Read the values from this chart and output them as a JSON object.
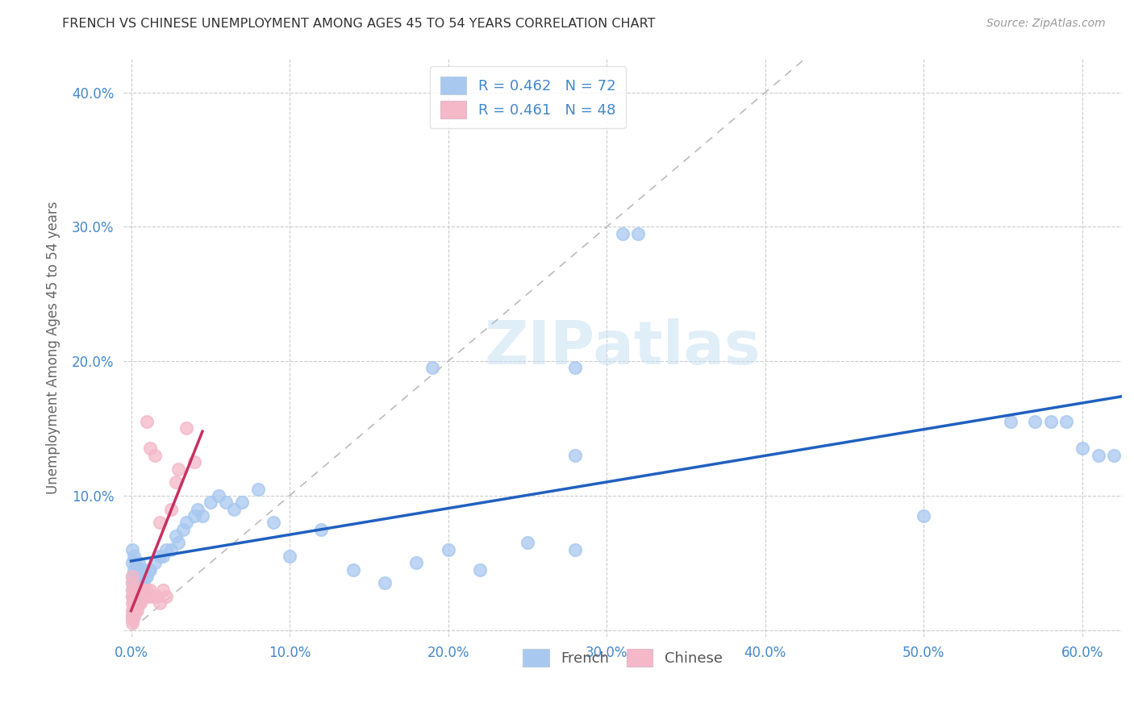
{
  "title": "FRENCH VS CHINESE UNEMPLOYMENT AMONG AGES 45 TO 54 YEARS CORRELATION CHART",
  "source": "Source: ZipAtlas.com",
  "ylabel": "Unemployment Among Ages 45 to 54 years",
  "xlim": [
    -0.005,
    0.625
  ],
  "ylim": [
    -0.005,
    0.425
  ],
  "xticks": [
    0.0,
    0.1,
    0.2,
    0.3,
    0.4,
    0.5,
    0.6
  ],
  "yticks": [
    0.0,
    0.1,
    0.2,
    0.3,
    0.4
  ],
  "xticklabels": [
    "0.0%",
    "10.0%",
    "20.0%",
    "30.0%",
    "40.0%",
    "50.0%",
    "60.0%"
  ],
  "yticklabels": [
    "",
    "10.0%",
    "20.0%",
    "30.0%",
    "40.0%"
  ],
  "french_color": "#a8c8f0",
  "chinese_color": "#f4b8c8",
  "french_line_color": "#2060c0",
  "chinese_line_color": "#c83060",
  "tick_color": "#4488cc",
  "axis_label_color": "#666666",
  "title_color": "#333333",
  "grid_color": "#cccccc",
  "background_color": "#ffffff",
  "legend_color": "#4488cc",
  "french_x": [
    0.001,
    0.001,
    0.001,
    0.001,
    0.001,
    0.001,
    0.002,
    0.002,
    0.002,
    0.002,
    0.002,
    0.003,
    0.003,
    0.003,
    0.003,
    0.004,
    0.004,
    0.004,
    0.005,
    0.005,
    0.005,
    0.006,
    0.006,
    0.007,
    0.007,
    0.008,
    0.008,
    0.009,
    0.01,
    0.011,
    0.012,
    0.015,
    0.018,
    0.02,
    0.022,
    0.025,
    0.028,
    0.03,
    0.033,
    0.035,
    0.04,
    0.042,
    0.045,
    0.05,
    0.055,
    0.06,
    0.065,
    0.07,
    0.08,
    0.09,
    0.1,
    0.12,
    0.14,
    0.16,
    0.18,
    0.2,
    0.22,
    0.25,
    0.28,
    0.31,
    0.32,
    0.5,
    0.555,
    0.57,
    0.58,
    0.59,
    0.6,
    0.61,
    0.62,
    0.28,
    0.19,
    0.28
  ],
  "french_y": [
    0.03,
    0.04,
    0.05,
    0.06,
    0.035,
    0.025,
    0.035,
    0.045,
    0.055,
    0.025,
    0.03,
    0.04,
    0.05,
    0.03,
    0.02,
    0.035,
    0.045,
    0.025,
    0.04,
    0.05,
    0.03,
    0.04,
    0.035,
    0.045,
    0.03,
    0.035,
    0.045,
    0.04,
    0.04,
    0.045,
    0.045,
    0.05,
    0.055,
    0.055,
    0.06,
    0.06,
    0.07,
    0.065,
    0.075,
    0.08,
    0.085,
    0.09,
    0.085,
    0.095,
    0.1,
    0.095,
    0.09,
    0.095,
    0.105,
    0.08,
    0.055,
    0.075,
    0.045,
    0.035,
    0.05,
    0.06,
    0.045,
    0.065,
    0.06,
    0.295,
    0.295,
    0.085,
    0.155,
    0.155,
    0.155,
    0.155,
    0.135,
    0.13,
    0.13,
    0.195,
    0.195,
    0.13
  ],
  "chinese_x": [
    0.001,
    0.001,
    0.001,
    0.001,
    0.001,
    0.001,
    0.001,
    0.001,
    0.001,
    0.001,
    0.002,
    0.002,
    0.002,
    0.002,
    0.002,
    0.003,
    0.003,
    0.003,
    0.003,
    0.004,
    0.004,
    0.004,
    0.005,
    0.005,
    0.005,
    0.006,
    0.006,
    0.007,
    0.007,
    0.008,
    0.009,
    0.01,
    0.011,
    0.012,
    0.014,
    0.016,
    0.018,
    0.02,
    0.022,
    0.025,
    0.028,
    0.03,
    0.035,
    0.04,
    0.01,
    0.012,
    0.015,
    0.018
  ],
  "chinese_y": [
    0.01,
    0.015,
    0.02,
    0.025,
    0.03,
    0.035,
    0.005,
    0.04,
    0.008,
    0.012,
    0.015,
    0.02,
    0.025,
    0.03,
    0.01,
    0.015,
    0.02,
    0.025,
    0.03,
    0.015,
    0.02,
    0.025,
    0.02,
    0.025,
    0.03,
    0.02,
    0.025,
    0.025,
    0.03,
    0.03,
    0.025,
    0.03,
    0.025,
    0.03,
    0.025,
    0.025,
    0.02,
    0.03,
    0.025,
    0.09,
    0.11,
    0.12,
    0.15,
    0.125,
    0.155,
    0.135,
    0.13,
    0.08
  ]
}
